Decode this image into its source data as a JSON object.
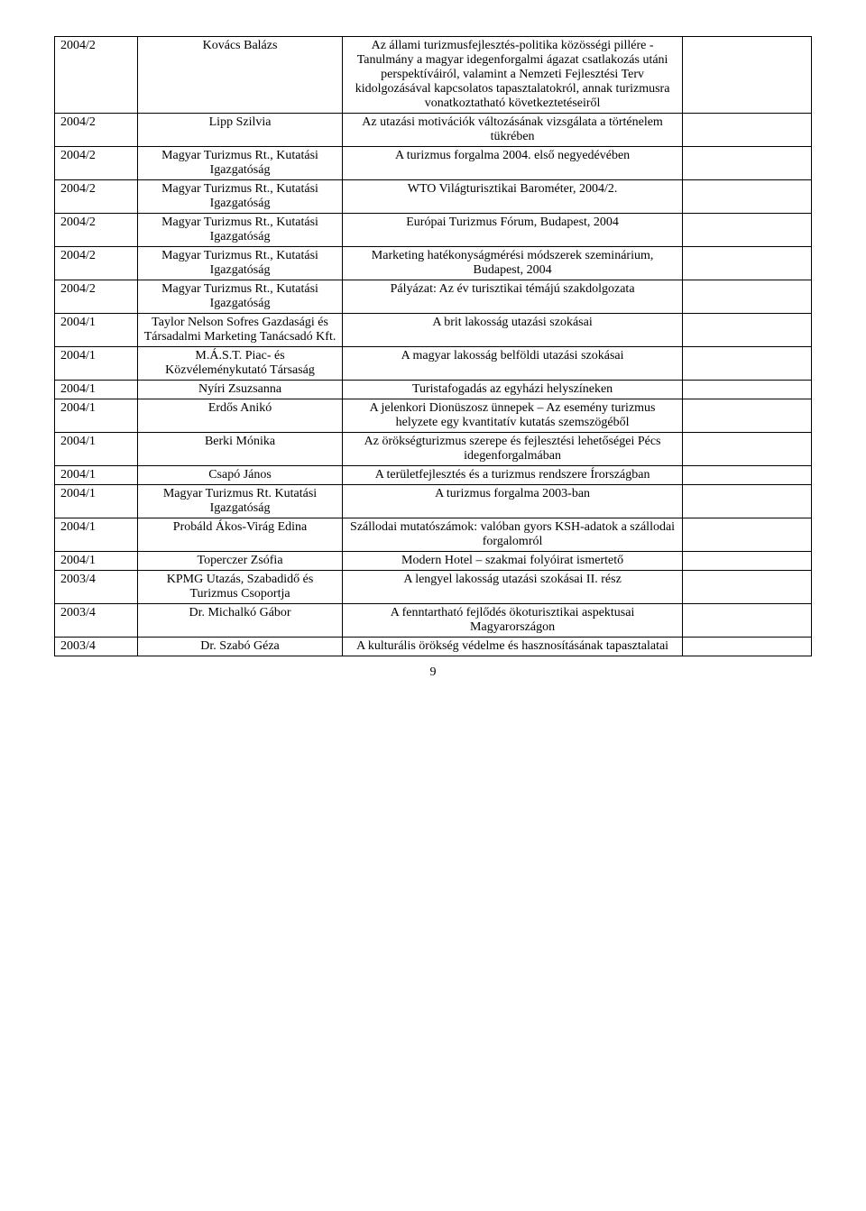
{
  "table": {
    "columns": {
      "year_width_pct": 11,
      "author_width_pct": 27,
      "title_width_pct": 45,
      "empty_width_pct": 17
    },
    "rows": [
      {
        "year": "2004/2",
        "author": "Kovács Balázs",
        "title": "Az állami turizmusfejlesztés-politika közösségi pillére - Tanulmány a magyar idegenforgalmi ágazat csatlakozás utáni perspektíváiról, valamint a Nemzeti Fejlesztési Terv kidolgozásával kapcsolatos tapasztalatokról, annak turizmusra vonatkoztatható következtetéseiről"
      },
      {
        "year": "2004/2",
        "author": "Lipp Szilvia",
        "title": "Az utazási motivációk változásának vizsgálata a történelem tükrében"
      },
      {
        "year": "2004/2",
        "author": "Magyar Turizmus Rt., Kutatási Igazgatóság",
        "title": "A turizmus forgalma 2004. első negyedévében"
      },
      {
        "year": "2004/2",
        "author": "Magyar Turizmus Rt., Kutatási Igazgatóság",
        "title": "WTO Világturisztikai Barométer, 2004/2."
      },
      {
        "year": "2004/2",
        "author": "Magyar Turizmus Rt., Kutatási Igazgatóság",
        "title": "Európai Turizmus Fórum, Budapest, 2004"
      },
      {
        "year": "2004/2",
        "author": "Magyar Turizmus Rt., Kutatási Igazgatóság",
        "title": "Marketing hatékonyságmérési módszerek szeminárium, Budapest, 2004"
      },
      {
        "year": "2004/2",
        "author": "Magyar Turizmus Rt., Kutatási Igazgatóság",
        "title": "Pályázat: Az év turisztikai témájú szakdolgozata"
      },
      {
        "year": "2004/1",
        "author": "Taylor Nelson Sofres Gazdasági és Társadalmi Marketing Tanácsadó Kft.",
        "title": "A brit lakosság utazási szokásai"
      },
      {
        "year": "2004/1",
        "author": "M.Á.S.T. Piac- és Közvéleménykutató Társaság",
        "title": "A magyar lakosság belföldi utazási szokásai"
      },
      {
        "year": "2004/1",
        "author": "Nyíri Zsuzsanna",
        "title": "Turistafogadás az egyházi helyszíneken"
      },
      {
        "year": "2004/1",
        "author": "Erdős Anikó",
        "title": "A jelenkori Dionüszosz ünnepek – Az esemény turizmus helyzete egy kvantitatív kutatás szemszögéből"
      },
      {
        "year": "2004/1",
        "author": "Berki Mónika",
        "title": "Az örökségturizmus szerepe és fejlesztési lehetőségei Pécs idegenforgalmában"
      },
      {
        "year": "2004/1",
        "author": "Csapó János",
        "title": "A területfejlesztés és a turizmus rendszere Írországban"
      },
      {
        "year": "2004/1",
        "author": "Magyar Turizmus Rt. Kutatási Igazgatóság",
        "title": "A turizmus forgalma 2003-ban"
      },
      {
        "year": "2004/1",
        "author": "Probáld Ákos-Virág Edina",
        "title": "Szállodai mutatószámok: valóban gyors KSH-adatok a szállodai forgalomról"
      },
      {
        "year": "2004/1",
        "author": "Toperczer Zsófia",
        "title": "Modern Hotel – szakmai folyóirat ismertető"
      },
      {
        "year": "2003/4",
        "author": "KPMG Utazás, Szabadidő és Turizmus Csoportja",
        "title": "A lengyel lakosság utazási szokásai II. rész"
      },
      {
        "year": "2003/4",
        "author": "Dr. Michalkó Gábor",
        "title": "A fenntartható fejlődés ökoturisztikai aspektusai Magyarországon"
      },
      {
        "year": "2003/4",
        "author": "Dr. Szabó Géza",
        "title": "A kulturális örökség védelme és hasznosításának tapasztalatai"
      }
    ]
  },
  "page_number": "9",
  "style": {
    "font_family": "Times New Roman",
    "font_size_pt": 11,
    "border_color": "#000000",
    "background_color": "#ffffff",
    "text_color": "#000000"
  }
}
